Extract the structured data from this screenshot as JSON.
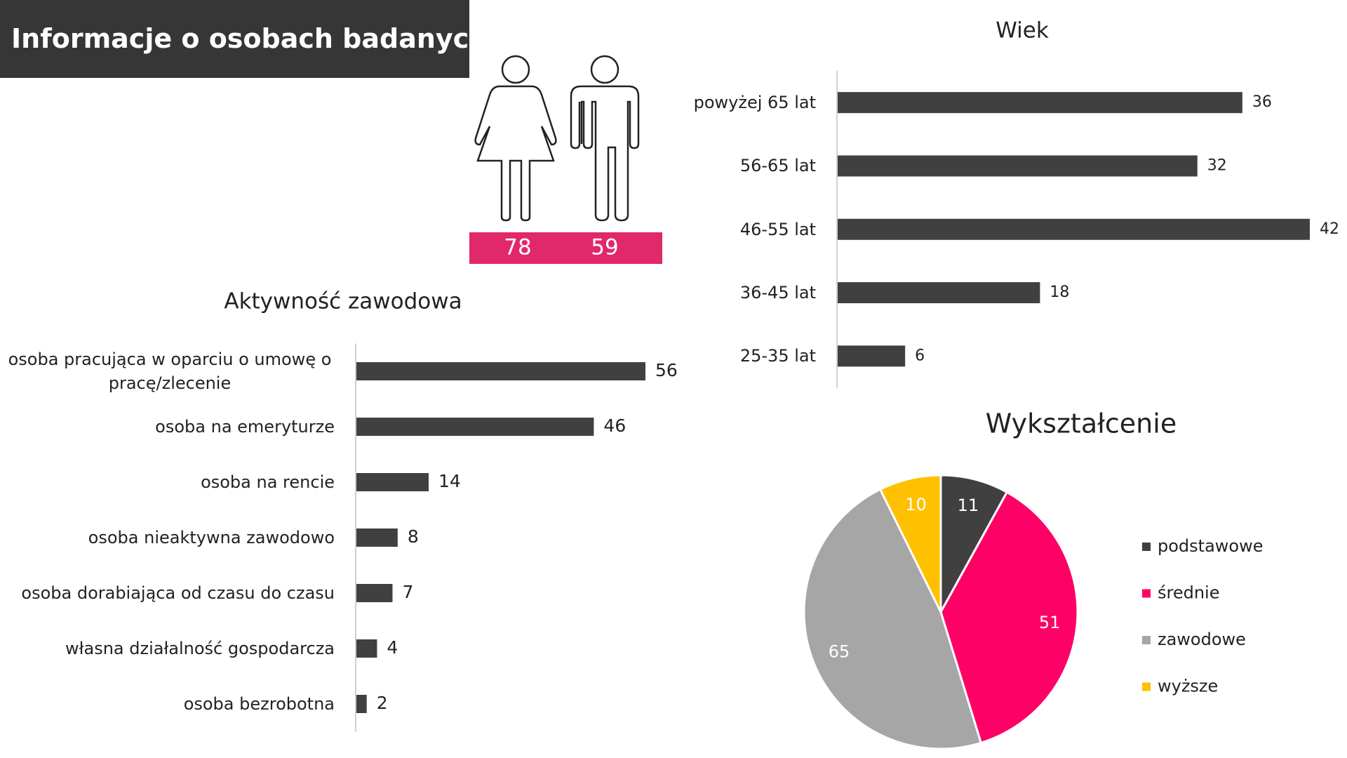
{
  "header": {
    "title": "Informacje o osobach badanych"
  },
  "gender": {
    "female": 78,
    "male": 59,
    "color": "#e0286a"
  },
  "chart_data": [
    {
      "type": "bar",
      "title": "Wiek",
      "categories": [
        "powyżej 65 lat",
        "56-65 lat",
        "46-55 lat",
        "36-45 lat",
        "25-35 lat"
      ],
      "values": [
        36,
        32,
        42,
        18,
        6
      ],
      "color": "#404040"
    },
    {
      "type": "bar",
      "title": "Aktywność zawodowa",
      "categories": [
        "osoba pracująca w oparciu o umowę o pracę/zlecenie",
        "osoba na emeryturze",
        "osoba na rencie",
        "osoba nieaktywna zawodowo",
        "osoba dorabiająca od czasu do czasu",
        "własna działalność gospodarcza",
        "osoba bezrobotna"
      ],
      "values": [
        56,
        46,
        14,
        8,
        7,
        4,
        2
      ],
      "color": "#404040"
    },
    {
      "type": "pie",
      "title": "Wykształcenie",
      "categories": [
        "podstawowe",
        "średnie",
        "zawodowe",
        "wyższe"
      ],
      "values": [
        11,
        51,
        65,
        10
      ],
      "colors": [
        "#404040",
        "#ff0066",
        "#a6a6a6",
        "#ffc000"
      ]
    }
  ]
}
